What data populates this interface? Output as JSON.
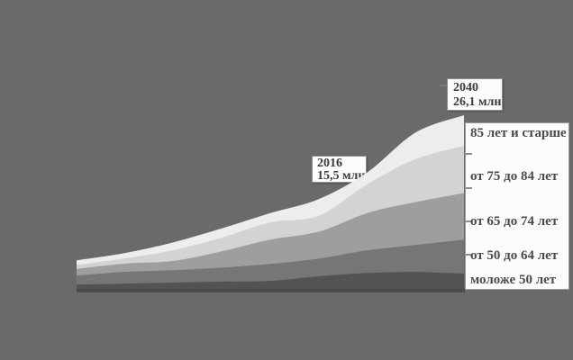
{
  "background_color": "#6a6a6a",
  "chart_data": {
    "type": "area",
    "stacked": true,
    "title": "",
    "unit": "млн",
    "legend_position": "right",
    "grid": false,
    "axes_visible": false,
    "ylim": [
      0,
      26.1
    ],
    "baseline_shadow_color": "#4b4b4b",
    "series": [
      {
        "name": "моложе 50 лет",
        "color": "#535353",
        "values": [
          0.65,
          0.8,
          0.95,
          1.1,
          1.2,
          1.9,
          2.4,
          2.55,
          2.3
        ]
      },
      {
        "name": "от 50 до 64 лет",
        "color": "#767676",
        "values": [
          1.35,
          1.75,
          1.85,
          2.1,
          2.55,
          2.65,
          3.4,
          4.05,
          5.1
        ]
      },
      {
        "name": "от 65 до 74 лет",
        "color": "#9e9e9e",
        "values": [
          1.0,
          1.25,
          1.4,
          2.45,
          3.65,
          4.05,
          5.6,
          6.45,
          7.0
        ]
      },
      {
        "name": "от 75 до 84 лет",
        "color": "#d3d3d3",
        "values": [
          0.6,
          0.8,
          1.6,
          2.05,
          2.6,
          2.4,
          4.3,
          6.45,
          7.1
        ]
      },
      {
        "name": "85 лет и старше",
        "color": "#ededed",
        "values": [
          0.7,
          0.8,
          1.2,
          1.4,
          1.4,
          2.5,
          1.8,
          4.0,
          4.6
        ]
      }
    ],
    "annotations": [
      {
        "year": "2016",
        "value_label": "15,5 млн"
      },
      {
        "year": "2040",
        "value_label": "26,1 млн"
      }
    ]
  }
}
